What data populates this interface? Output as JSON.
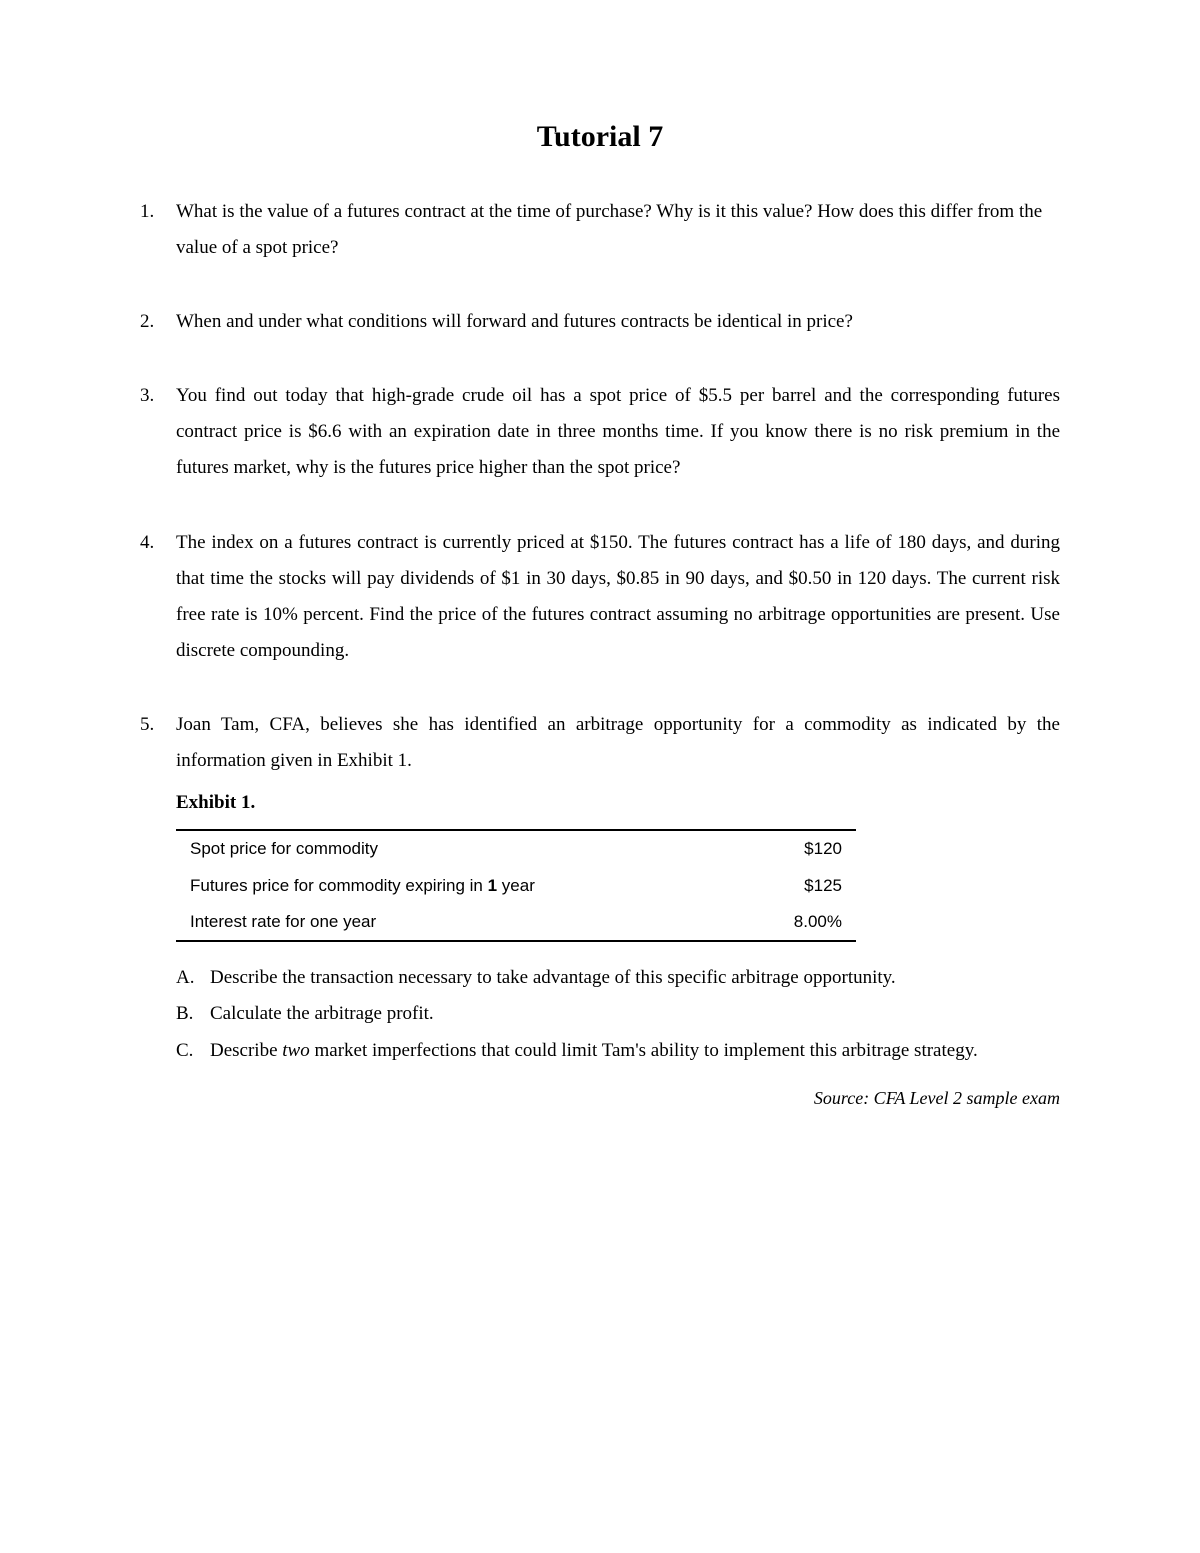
{
  "title": "Tutorial 7",
  "questions": [
    {
      "num": "1.",
      "text": "What is the value of a futures contract at the time of purchase? Why is it this value? How does this differ from the value of a spot price?",
      "justify": false
    },
    {
      "num": "2.",
      "text": "When and under what conditions will forward and futures contracts be identical in price?",
      "justify": false
    },
    {
      "num": "3.",
      "text": "You find out today that high-grade crude oil has a spot price of $5.5 per barrel and the corresponding futures contract price is $6.6 with an expiration date in three months time. If you know there is no risk premium in the futures market, why is the futures price higher than the spot price?",
      "justify": true
    },
    {
      "num": "4.",
      "text": "The index on a futures contract is currently priced at $150. The futures contract has a life of 180 days, and during that time the stocks will pay dividends of $1 in 30 days, $0.85 in 90 days, and $0.50 in 120 days. The current risk free rate is 10% percent. Find the price of the futures contract assuming no arbitrage opportunities are present. Use discrete compounding.",
      "justify": true
    },
    {
      "num": "5.",
      "intro": "Joan Tam, CFA, believes she has identified an arbitrage opportunity for a commodity as indicated by the information given in Exhibit 1.",
      "justify": true,
      "exhibit": {
        "label": "Exhibit 1.",
        "rows": [
          {
            "label": "Spot price for commodity",
            "value": "$120"
          },
          {
            "label_pre": "Futures price for commodity expiring in ",
            "label_bold": "1",
            "label_post": " year",
            "value": "$125"
          },
          {
            "label": "Interest rate for one year",
            "value": "8.00%"
          }
        ]
      },
      "subs": [
        {
          "letter": "A.",
          "text": "Describe the transaction necessary to take advantage of this specific arbitrage opportunity."
        },
        {
          "letter": "B.",
          "text": "Calculate the arbitrage profit."
        },
        {
          "letter": "C.",
          "text_pre": "Describe ",
          "text_italic": "two",
          "text_post": " market imperfections that could limit Tam's ability to implement this arbitrage strategy."
        }
      ],
      "source": "Source: CFA Level 2 sample exam"
    }
  ]
}
